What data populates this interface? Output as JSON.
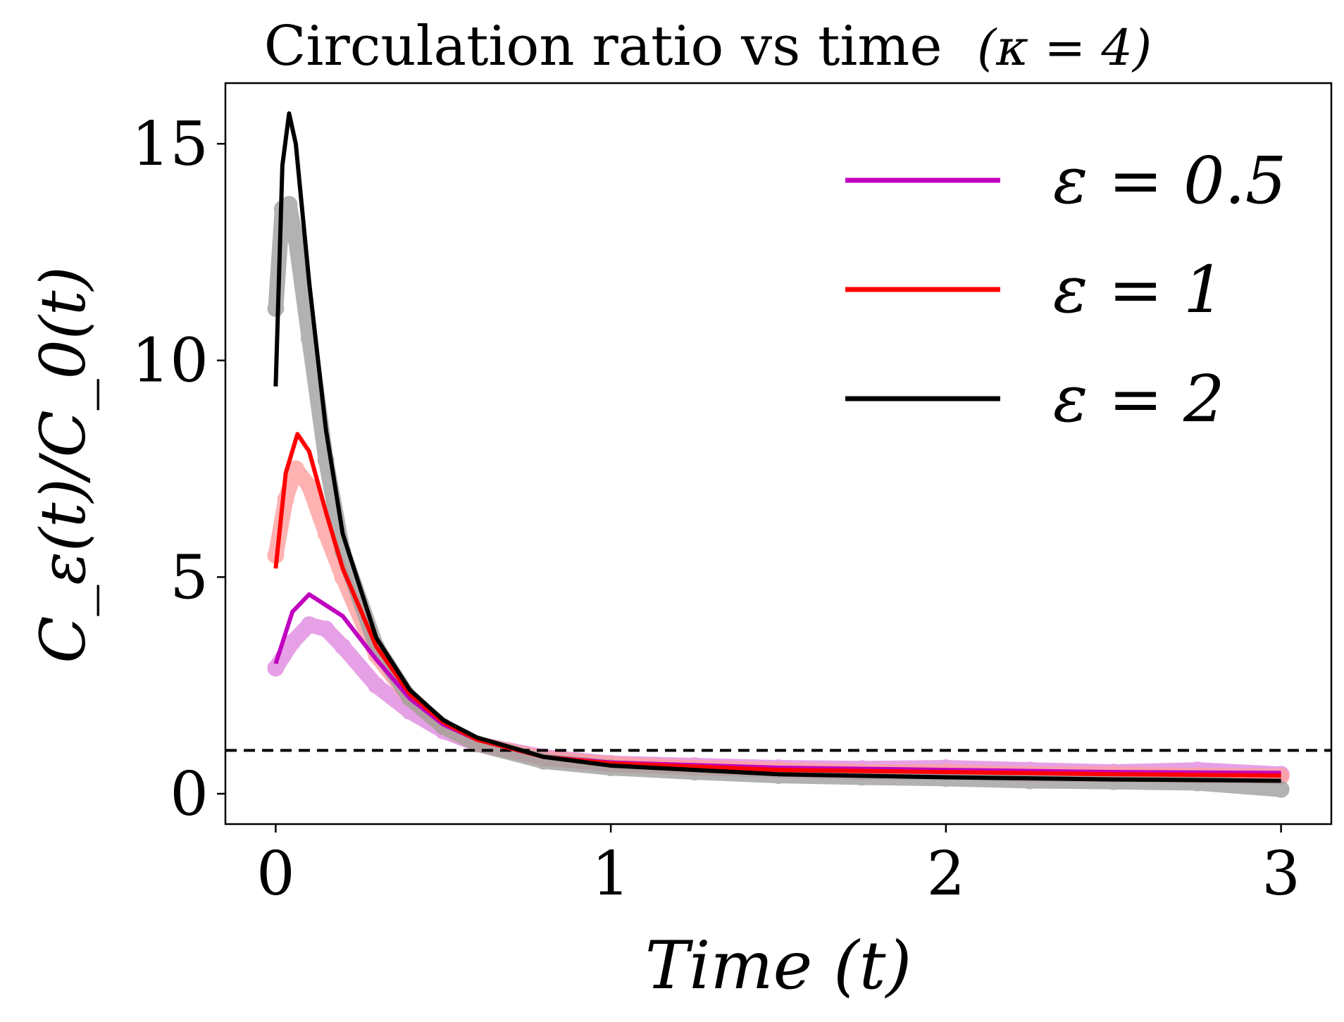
{
  "chart_data": {
    "type": "line",
    "title": "Circulation ratio vs time",
    "title_annotation": "(κ = 4)",
    "xlabel": "Time (t)",
    "ylabel": "C_ε(t)/C_0(t)",
    "xlim": [
      -0.15,
      3.15
    ],
    "ylim": [
      -0.7,
      16.4
    ],
    "xticks": [
      0,
      1,
      2,
      3
    ],
    "yticks": [
      0,
      5,
      10,
      15
    ],
    "xtick_labels": [
      "0",
      "1",
      "2",
      "3"
    ],
    "ytick_labels": [
      "0",
      "5",
      "10",
      "15"
    ],
    "reference_line": {
      "y": 1.0,
      "style": "dashed",
      "color": "#000000"
    },
    "legend_position": "top-right",
    "series": [
      {
        "name": "ε = 0.5",
        "eps": "0.5",
        "color": "#c000c0",
        "scatter_color": "#e08ae0",
        "fit": {
          "x": [
            0,
            0.05,
            0.1,
            0.2,
            0.3,
            0.4,
            0.5,
            0.6,
            0.8,
            1.0,
            1.5,
            2.0,
            2.5,
            3.0
          ],
          "y": [
            3.0,
            4.2,
            4.6,
            4.1,
            3.1,
            2.2,
            1.6,
            1.25,
            0.85,
            0.72,
            0.6,
            0.55,
            0.5,
            0.48
          ]
        },
        "scatter": {
          "x": [
            0,
            0.05,
            0.1,
            0.15,
            0.2,
            0.3,
            0.4,
            0.5,
            0.6,
            0.8,
            1.0,
            1.25,
            1.5,
            1.75,
            2.0,
            2.25,
            2.5,
            2.75,
            3.0
          ],
          "y": [
            2.9,
            3.5,
            3.9,
            3.8,
            3.4,
            2.5,
            1.9,
            1.45,
            1.15,
            0.85,
            0.7,
            0.65,
            0.6,
            0.58,
            0.6,
            0.55,
            0.5,
            0.55,
            0.45
          ]
        }
      },
      {
        "name": "ε = 1",
        "eps": "1",
        "color": "#ff0000",
        "scatter_color": "#ffa0a0",
        "fit": {
          "x": [
            0,
            0.03,
            0.065,
            0.1,
            0.15,
            0.2,
            0.3,
            0.4,
            0.5,
            0.6,
            0.8,
            1.0,
            1.5,
            2.0,
            2.5,
            3.0
          ],
          "y": [
            5.2,
            7.4,
            8.3,
            7.9,
            6.5,
            5.2,
            3.4,
            2.3,
            1.65,
            1.25,
            0.85,
            0.7,
            0.55,
            0.5,
            0.45,
            0.42
          ]
        },
        "scatter": {
          "x": [
            0,
            0.03,
            0.06,
            0.1,
            0.15,
            0.2,
            0.3,
            0.4,
            0.5,
            0.6,
            0.8,
            1.0,
            1.25,
            1.5,
            1.75,
            2.0,
            2.25,
            2.5,
            2.75,
            3.0
          ],
          "y": [
            5.5,
            6.8,
            7.5,
            7.1,
            6.0,
            5.0,
            3.2,
            2.2,
            1.55,
            1.15,
            0.82,
            0.68,
            0.6,
            0.55,
            0.5,
            0.5,
            0.45,
            0.45,
            0.42,
            0.4
          ]
        }
      },
      {
        "name": "ε = 2",
        "eps": "2",
        "color": "#000000",
        "scatter_color": "#a0a0a0",
        "fit": {
          "x": [
            0,
            0.02,
            0.04,
            0.06,
            0.1,
            0.15,
            0.2,
            0.3,
            0.4,
            0.5,
            0.6,
            0.8,
            1.0,
            1.5,
            2.0,
            2.5,
            3.0
          ],
          "y": [
            9.4,
            14.5,
            15.7,
            15.0,
            11.8,
            8.4,
            6.0,
            3.6,
            2.4,
            1.7,
            1.3,
            0.85,
            0.65,
            0.45,
            0.38,
            0.33,
            0.3
          ]
        },
        "scatter": {
          "x": [
            0,
            0.02,
            0.04,
            0.06,
            0.1,
            0.15,
            0.2,
            0.3,
            0.4,
            0.5,
            0.6,
            0.8,
            1.0,
            1.25,
            1.5,
            1.75,
            2.0,
            2.25,
            2.5,
            2.75,
            3.0
          ],
          "y": [
            11.2,
            13.5,
            13.6,
            12.8,
            10.5,
            7.7,
            5.6,
            3.4,
            2.2,
            1.55,
            1.15,
            0.75,
            0.6,
            0.5,
            0.42,
            0.38,
            0.35,
            0.3,
            0.28,
            0.25,
            0.1
          ]
        }
      }
    ]
  }
}
